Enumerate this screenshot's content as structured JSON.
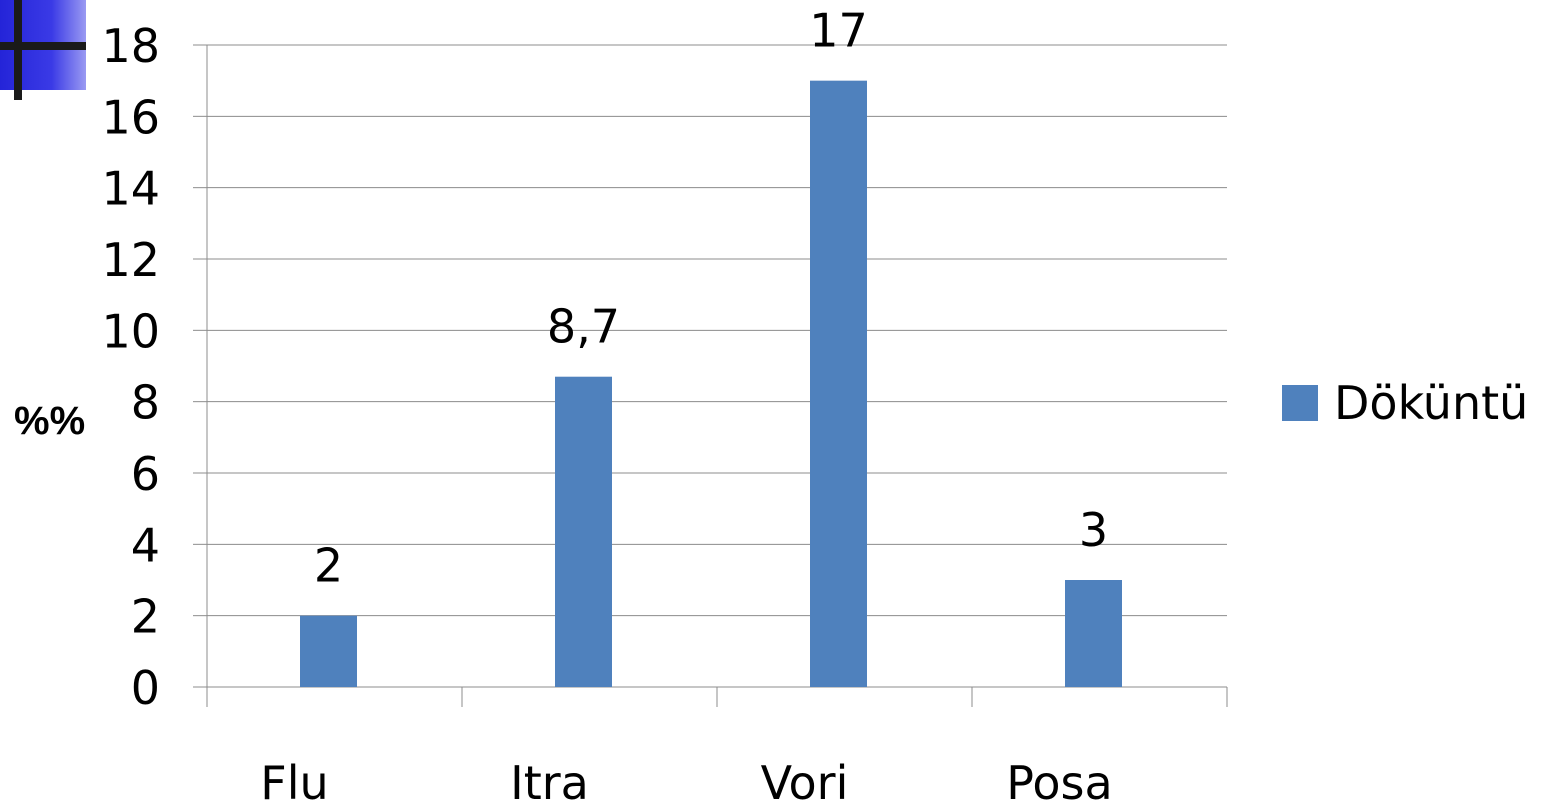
{
  "chart_data": {
    "type": "bar",
    "categories": [
      "Flu",
      "Itra",
      "Vori",
      "Posa"
    ],
    "series": [
      {
        "name": "Döküntü",
        "values": [
          2,
          8.7,
          17,
          3
        ],
        "data_labels": [
          "2",
          "8,7",
          "17",
          "3"
        ],
        "color": "#4F81BD"
      }
    ],
    "ylabel": "%%",
    "xlabel": "",
    "ylim": [
      0,
      18
    ],
    "yticks": [
      0,
      2,
      4,
      6,
      8,
      10,
      12,
      14,
      16,
      18
    ],
    "grid": true,
    "legend_position": "right"
  },
  "decoration": {
    "corner_icon": "blue-square-cross-icon",
    "corner_color": "#2B2BE0"
  }
}
